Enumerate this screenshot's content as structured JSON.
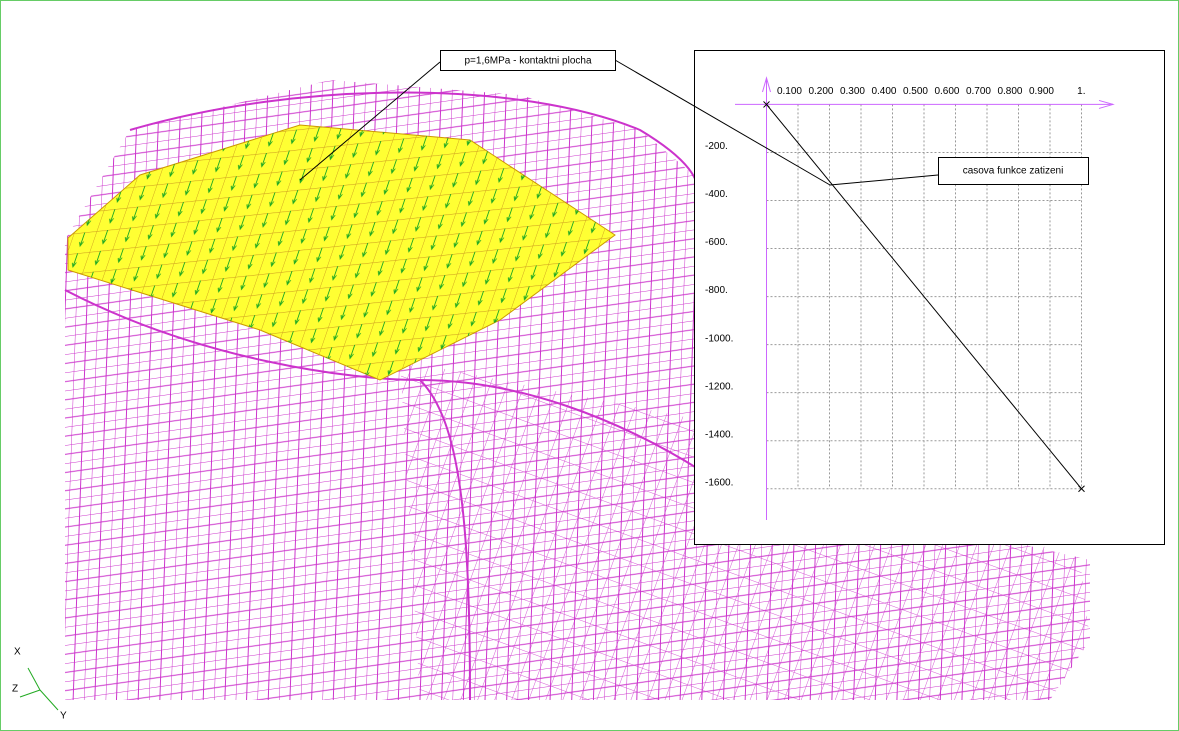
{
  "chart_data": {
    "type": "line",
    "x": [
      0,
      1
    ],
    "values": [
      0,
      -1600
    ],
    "color": "#000000",
    "xlim": [
      -0.1,
      1.1
    ],
    "ylim": [
      -1730,
      110
    ],
    "xticks": [
      {
        "value": 0.1,
        "label": "0.100"
      },
      {
        "value": 0.2,
        "label": "0.200"
      },
      {
        "value": 0.3,
        "label": "0.300"
      },
      {
        "value": 0.4,
        "label": "0.400"
      },
      {
        "value": 0.5,
        "label": "0.500"
      },
      {
        "value": 0.6,
        "label": "0.600"
      },
      {
        "value": 0.7,
        "label": "0.700"
      },
      {
        "value": 0.8,
        "label": "0.800"
      },
      {
        "value": 0.9,
        "label": "0.900"
      },
      {
        "value": 1,
        "label": "1."
      }
    ],
    "yticks": [
      {
        "value": -200,
        "label": "-200."
      },
      {
        "value": -400,
        "label": "-400."
      },
      {
        "value": -600,
        "label": "-600."
      },
      {
        "value": -800,
        "label": "-800."
      },
      {
        "value": -1000,
        "label": "-1000."
      },
      {
        "value": -1200,
        "label": "-1200."
      },
      {
        "value": -1400,
        "label": "-1400."
      },
      {
        "value": -1600,
        "label": "-1600."
      }
    ],
    "grid": true,
    "axis_color": "#cc66ff"
  },
  "annotations": [
    "p=1,6MPa - kontaktni plocha",
    "casova funkce zatizeni"
  ],
  "triad": {
    "x": "X",
    "y": "Y",
    "z": "Z"
  }
}
